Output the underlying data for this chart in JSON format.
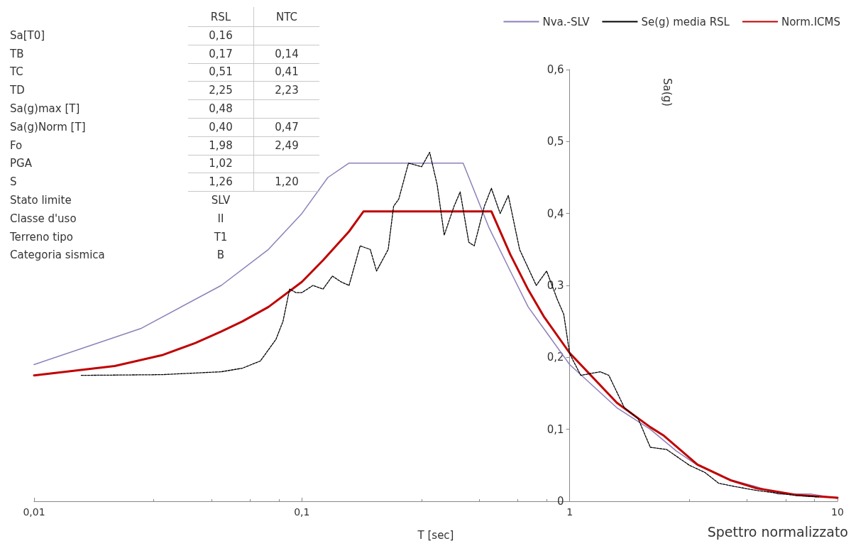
{
  "chart_data": {
    "type": "line",
    "xlabel": "T [sec]",
    "ylabel": "Sa(g)",
    "log": "x",
    "grid": false,
    "legend": "top right",
    "marker": "none",
    "xlim": [
      0.01,
      10
    ],
    "xticks": [
      {
        "value": 0.01,
        "label": "0,01"
      },
      {
        "value": 0.1,
        "label": "0,1"
      },
      1,
      10
    ],
    "ylim": [
      0,
      0.6
    ],
    "yticks": [
      0,
      {
        "value": 0.1,
        "label": "0,1"
      },
      {
        "value": 0.2,
        "label": "0,2"
      },
      {
        "value": 0.3,
        "label": "0,3"
      },
      {
        "value": 0.4,
        "label": "0,4"
      },
      {
        "value": 0.5,
        "label": "0,5"
      },
      {
        "value": 0.6,
        "label": "0,6"
      }
    ],
    "series": [
      {
        "name": "Nva.-SLV",
        "color": "#8e7fb8",
        "line_style": "solid",
        "x": [
          0.01,
          0.025,
          0.05,
          0.075,
          0.1,
          0.125,
          0.15,
          0.4,
          0.5,
          0.6,
          0.7,
          0.8,
          1,
          1.5,
          2,
          2.5,
          3,
          4,
          5,
          6,
          8,
          10
        ],
        "values": [
          0.19,
          0.24,
          0.3,
          0.35,
          0.4,
          0.45,
          0.47,
          0.47,
          0.38,
          0.32,
          0.27,
          0.24,
          0.19,
          0.13,
          0.1,
          0.07,
          0.05,
          0.03,
          0.02,
          0.01,
          0.01,
          0.004
        ]
      },
      {
        "name": "Se(g) media RSL",
        "color": "#000000",
        "line_style": "dashed",
        "x": [
          0.015,
          0.03,
          0.05,
          0.06,
          0.07,
          0.08,
          0.085,
          0.09,
          0.095,
          0.1,
          0.11,
          0.12,
          0.13,
          0.14,
          0.15,
          0.165,
          0.18,
          0.19,
          0.21,
          0.22,
          0.23,
          0.25,
          0.28,
          0.3,
          0.32,
          0.34,
          0.37,
          0.39,
          0.42,
          0.44,
          0.48,
          0.51,
          0.55,
          0.59,
          0.65,
          0.75,
          0.82,
          0.9,
          0.95,
          1,
          1.1,
          1.3,
          1.4,
          1.6,
          1.8,
          2,
          2.3,
          2.8,
          3.2,
          3.6,
          4.2,
          5,
          7,
          8.5
        ],
        "values": [
          0.175,
          0.176,
          0.18,
          0.185,
          0.195,
          0.225,
          0.25,
          0.295,
          0.29,
          0.29,
          0.3,
          0.295,
          0.313,
          0.305,
          0.3,
          0.355,
          0.35,
          0.32,
          0.35,
          0.41,
          0.42,
          0.47,
          0.465,
          0.485,
          0.44,
          0.37,
          0.41,
          0.43,
          0.36,
          0.355,
          0.41,
          0.435,
          0.4,
          0.425,
          0.35,
          0.3,
          0.32,
          0.28,
          0.26,
          0.205,
          0.175,
          0.18,
          0.175,
          0.13,
          0.115,
          0.075,
          0.072,
          0.05,
          0.04,
          0.025,
          0.02,
          0.015,
          0.008,
          0.006
        ]
      },
      {
        "name": "Norm.ICMS",
        "color": "#c00000",
        "line_style": "solid",
        "x": [
          0.01,
          0.02,
          0.03,
          0.04,
          0.05,
          0.06,
          0.075,
          0.1,
          0.12,
          0.15,
          0.17,
          0.51,
          0.6,
          0.7,
          0.8,
          1,
          1.5,
          2,
          2.25,
          3,
          4,
          5,
          7,
          10
        ],
        "values": [
          0.175,
          0.188,
          0.203,
          0.22,
          0.236,
          0.25,
          0.27,
          0.305,
          0.335,
          0.375,
          0.403,
          0.403,
          0.343,
          0.294,
          0.257,
          0.206,
          0.137,
          0.103,
          0.091,
          0.051,
          0.029,
          0.018,
          0.009,
          0.005
        ]
      }
    ],
    "annotations": [
      "RSL",
      "NTC",
      "Sa[T0]",
      "0,16",
      "TB",
      "0,17",
      "0,14",
      "TC",
      "0,51",
      "0,41",
      "TD",
      "2,25",
      "2,23",
      "Sa(g)max [T]",
      "0,48",
      "Sa(g)Norm [T]",
      "0,40",
      "0,47",
      "Fo",
      "1,98",
      "2,49",
      "PGA",
      "1,02",
      "S",
      "1,26",
      "1,20",
      "Stato limite",
      "SLV",
      "Classe d'uso",
      "II",
      "Terreno tipo",
      "T1",
      "Categoria sismica",
      "B",
      "Spettro normalizzato"
    ]
  }
}
